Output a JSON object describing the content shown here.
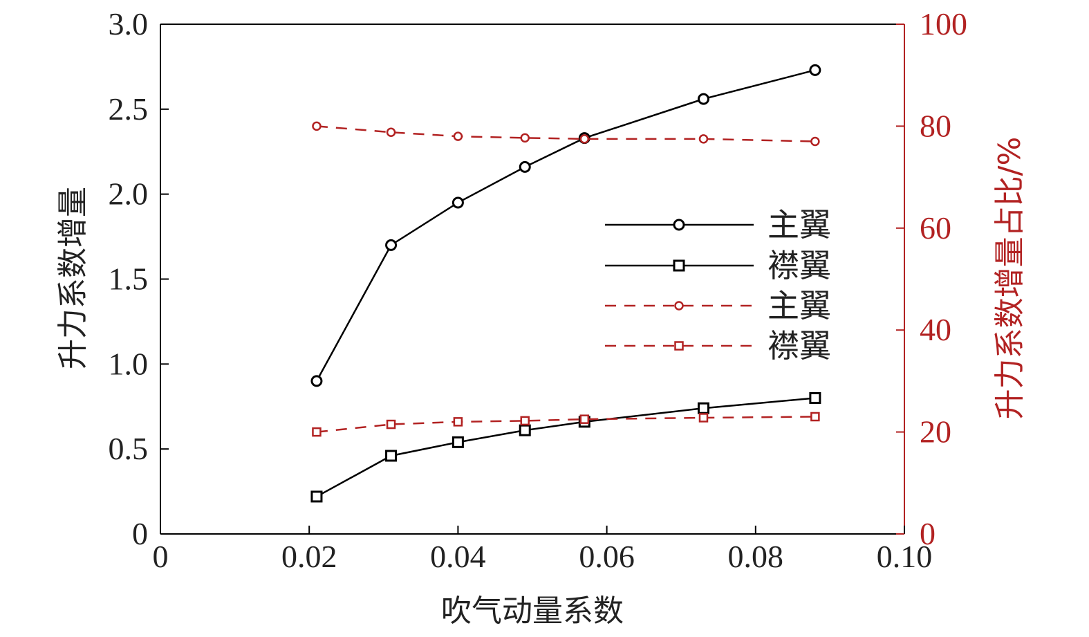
{
  "chart_data": {
    "type": "line",
    "title": "",
    "xlabel": "吹气动量系数",
    "ylabel_left": "升力系数增量",
    "ylabel_right": "升力系数增量占比/%",
    "xlim": [
      0,
      0.1
    ],
    "ylim_left": [
      0,
      3.0
    ],
    "ylim_right": [
      0,
      100
    ],
    "x_ticks": [
      "0",
      "0.02",
      "0.04",
      "0.06",
      "0.08",
      "0.10"
    ],
    "y_ticks_left": [
      "0",
      "0.5",
      "1.0",
      "1.5",
      "2.0",
      "2.5",
      "3.0"
    ],
    "y_ticks_right": [
      "0",
      "20",
      "40",
      "60",
      "80",
      "100"
    ],
    "x": [
      0.021,
      0.031,
      0.04,
      0.049,
      0.057,
      0.073,
      0.088
    ],
    "grid": false,
    "legend_position": "center-right",
    "colors": {
      "black": "#000000",
      "red": "#b22222"
    },
    "series": [
      {
        "name": "主翼",
        "axis": "left",
        "marker": "circle",
        "style": "solid",
        "color": "#000000",
        "values": [
          0.9,
          1.7,
          1.95,
          2.16,
          2.33,
          2.56,
          2.73
        ]
      },
      {
        "name": "襟翼",
        "axis": "left",
        "marker": "square",
        "style": "solid",
        "color": "#000000",
        "values": [
          0.22,
          0.46,
          0.54,
          0.61,
          0.66,
          0.74,
          0.8
        ]
      },
      {
        "name": "主翼",
        "axis": "right",
        "marker": "circle",
        "style": "dashed",
        "color": "#b22222",
        "values": [
          80,
          78.8,
          78.0,
          77.7,
          77.5,
          77.5,
          77.0
        ]
      },
      {
        "name": "襟翼",
        "axis": "right",
        "marker": "square",
        "style": "dashed",
        "color": "#b22222",
        "values": [
          20,
          21.5,
          22.0,
          22.2,
          22.5,
          22.8,
          23.0
        ]
      }
    ]
  }
}
